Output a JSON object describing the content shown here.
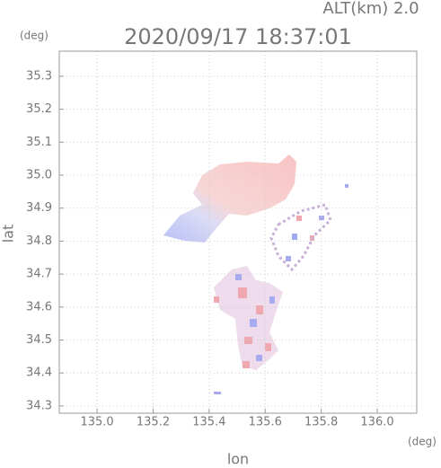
{
  "chart_data": {
    "type": "map",
    "title": "2020/09/17 18:37:01",
    "annotation": "ALT(km) 2.0",
    "x_label": "lon",
    "y_label": "lat",
    "x_unit": "(deg)",
    "y_unit": "(deg)",
    "xlim": [
      134.865,
      136.141
    ],
    "ylim": [
      34.278,
      35.376
    ],
    "xticks": [
      {
        "value": 135.0,
        "label": "135.0"
      },
      135.2,
      135.4,
      135.6,
      135.8,
      {
        "value": 136.0,
        "label": "136.0"
      }
    ],
    "yticks": [
      34.3,
      34.4,
      34.5,
      34.6,
      34.7,
      34.8,
      34.9,
      {
        "value": 35.0,
        "label": "35.0"
      },
      35.1,
      35.2,
      35.3
    ],
    "grid": true
  }
}
